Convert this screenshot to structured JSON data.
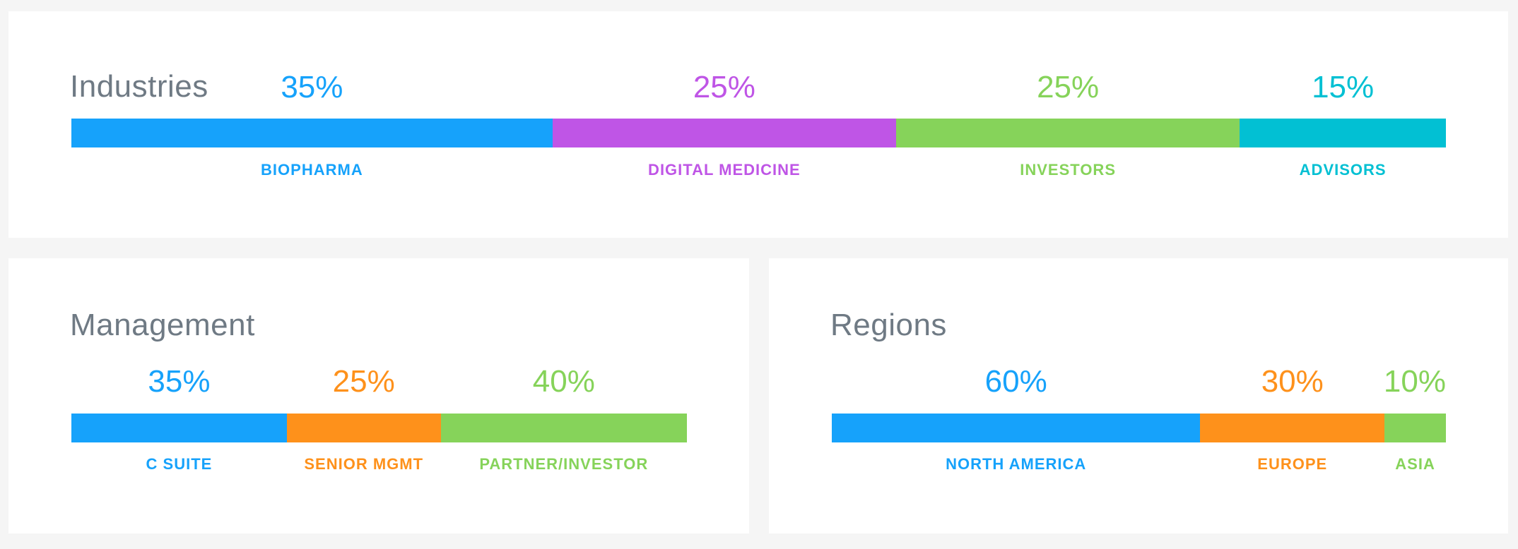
{
  "chart_data": [
    {
      "type": "bar",
      "orientation": "horizontal-stacked",
      "title": "Industries",
      "categories": [
        "BIOPHARMA",
        "DIGITAL MEDICINE",
        "INVESTORS",
        "ADVISORS"
      ],
      "values": [
        35,
        25,
        25,
        15
      ],
      "value_labels": [
        "35%",
        "25%",
        "25%",
        "15%"
      ],
      "colors": [
        "#16a2fb",
        "#bf55e6",
        "#86d35a",
        "#02c0d3"
      ],
      "unit": "%",
      "grid": false,
      "legend": "none"
    },
    {
      "type": "bar",
      "orientation": "horizontal-stacked",
      "title": "Management",
      "categories": [
        "C SUITE",
        "SENIOR MGMT",
        "PARTNER/INVESTOR"
      ],
      "values": [
        35,
        25,
        40
      ],
      "value_labels": [
        "35%",
        "25%",
        "40%"
      ],
      "colors": [
        "#16a2fb",
        "#fe911b",
        "#86d35a"
      ],
      "unit": "%",
      "grid": false,
      "legend": "none"
    },
    {
      "type": "bar",
      "orientation": "horizontal-stacked",
      "title": "Regions",
      "categories": [
        "NORTH AMERICA",
        "EUROPE",
        "ASIA"
      ],
      "values": [
        60,
        30,
        10
      ],
      "value_labels": [
        "60%",
        "30%",
        "10%"
      ],
      "colors": [
        "#16a2fb",
        "#fe911b",
        "#86d35a"
      ],
      "unit": "%",
      "grid": false,
      "legend": "none"
    }
  ]
}
